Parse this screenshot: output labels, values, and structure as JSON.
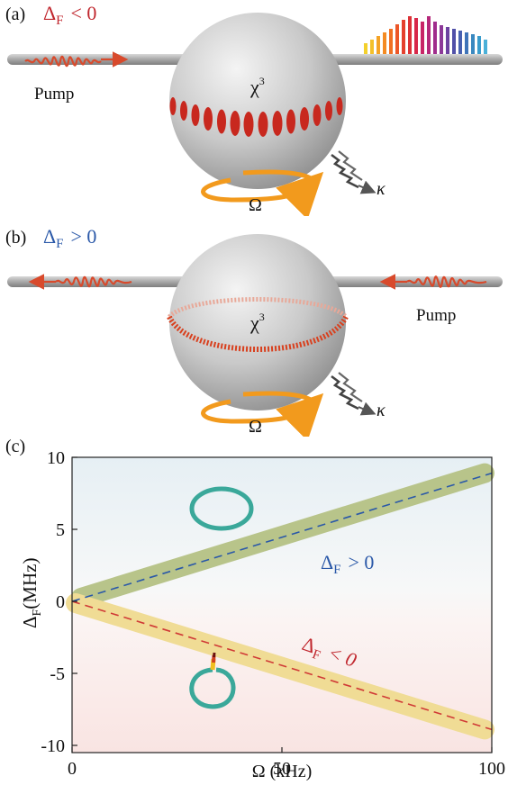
{
  "panel_a": {
    "label": "(a)",
    "delta_symbol": "Δ",
    "delta_sub": "F",
    "condition": "< 0",
    "pump_label": "Pump",
    "chi_label": "χ",
    "chi_sup": "3",
    "omega_label": "Ω",
    "kappa_label": "κ",
    "colors": {
      "condition": "#c0262d",
      "pump_wave": "#d84a2c",
      "mode": "#c8281e",
      "rotation": "#f29a1d"
    }
  },
  "panel_b": {
    "label": "(b)",
    "delta_symbol": "Δ",
    "delta_sub": "F",
    "condition": "> 0",
    "pump_label": "Pump",
    "chi_label": "χ",
    "chi_sup": "3",
    "omega_label": "Ω",
    "kappa_label": "κ",
    "colors": {
      "condition": "#2a58a8",
      "pump_wave": "#d84a2c",
      "mode": "#d8401e"
    }
  },
  "panel_c": {
    "label": "(c)",
    "ylabel_symbol": "Δ",
    "ylabel_sub": "F",
    "ylabel_unit": "(MHz)",
    "xlabel": "Ω (kHz)",
    "x_ticks": [
      "0",
      "50",
      "100"
    ],
    "y_ticks": [
      "10",
      "5",
      "0",
      "-5",
      "-10"
    ],
    "upper_branch_label": {
      "symbol": "Δ",
      "sub": "F",
      "relation": "> 0"
    },
    "lower_branch_label": {
      "symbol": "Δ",
      "sub": "F",
      "relation": "< 0"
    }
  },
  "chart_data": {
    "type": "line",
    "xlim": [
      0,
      100
    ],
    "ylim": [
      -10.5,
      10
    ],
    "series": [
      {
        "name": "Δ_F > 0",
        "x": [
          0,
          100
        ],
        "y": [
          0,
          8.9
        ],
        "color": "#2a58a8",
        "band_color": "#b8c48a"
      },
      {
        "name": "Δ_F < 0",
        "x": [
          0,
          100
        ],
        "y": [
          0,
          -8.9
        ],
        "color": "#d03a36",
        "band_color": "#f0dc95"
      }
    ]
  }
}
